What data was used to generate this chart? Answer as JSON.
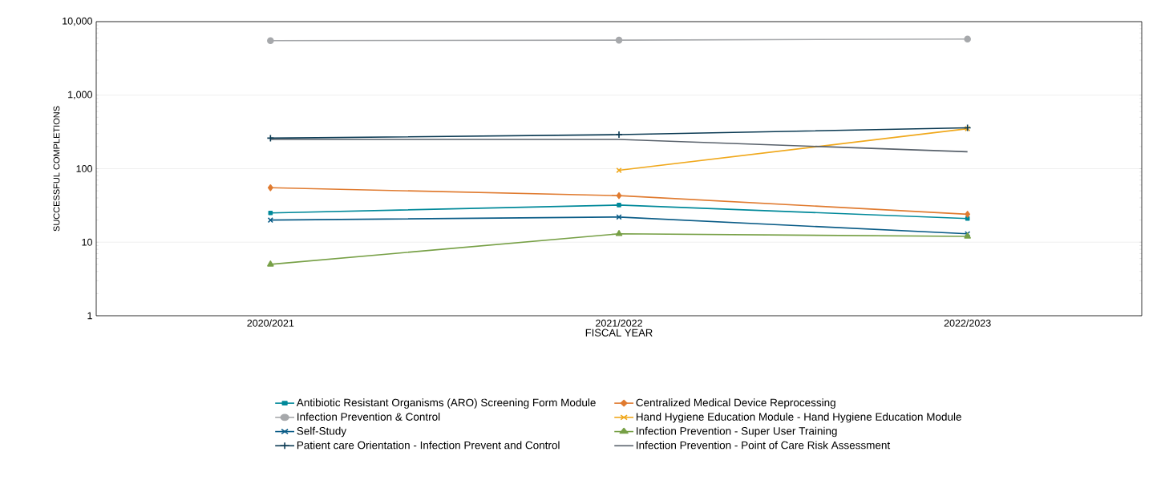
{
  "chart_data": {
    "type": "line",
    "xlabel": "FISCAL YEAR",
    "ylabel": "SUCCESSFUL COMPLETIONS",
    "categories": [
      "2020/2021",
      "2021/2022",
      "2022/2023"
    ],
    "log": "y",
    "ylim": [
      1,
      10000
    ],
    "yticks": [
      1,
      10,
      100,
      {
        "value": 1000,
        "label": "1,000"
      },
      {
        "value": 10000,
        "label": "10,000"
      }
    ],
    "grid": "y",
    "legend": "bottom",
    "series": [
      {
        "name": "Antibiotic Resistant Organisms (ARO) Screening Form Module",
        "color": "#00899a",
        "marker": "square",
        "values": [
          25,
          32,
          21
        ]
      },
      {
        "name": "Centralized Medical Device Reprocessing",
        "color": "#e07b30",
        "marker": "diamond",
        "values": [
          55,
          43,
          24
        ]
      },
      {
        "name": "Infection Prevention & Control",
        "color": "#a6a8ab",
        "marker": "circle",
        "values": [
          5500,
          5600,
          5800
        ]
      },
      {
        "name": "Hand Hygiene Education Module - Hand Hygiene Education Module",
        "color": "#f0a81c",
        "marker": "cross",
        "values": [
          null,
          95,
          350
        ]
      },
      {
        "name": "Self-Study",
        "color": "#0a5c87",
        "marker": "cross",
        "values": [
          20,
          22,
          13
        ]
      },
      {
        "name": "Infection Prevention - Super User Training",
        "color": "#77a046",
        "marker": "triangle",
        "values": [
          5,
          13,
          12
        ]
      },
      {
        "name": "Patient care Orientation - Infection Prevent and Control",
        "color": "#0b3a53",
        "marker": "plus",
        "values": [
          260,
          290,
          360
        ]
      },
      {
        "name": "Infection Prevention - Point of Care Risk Assessment",
        "color": "#58616b",
        "marker": "none",
        "values": [
          250,
          250,
          170
        ]
      }
    ]
  }
}
